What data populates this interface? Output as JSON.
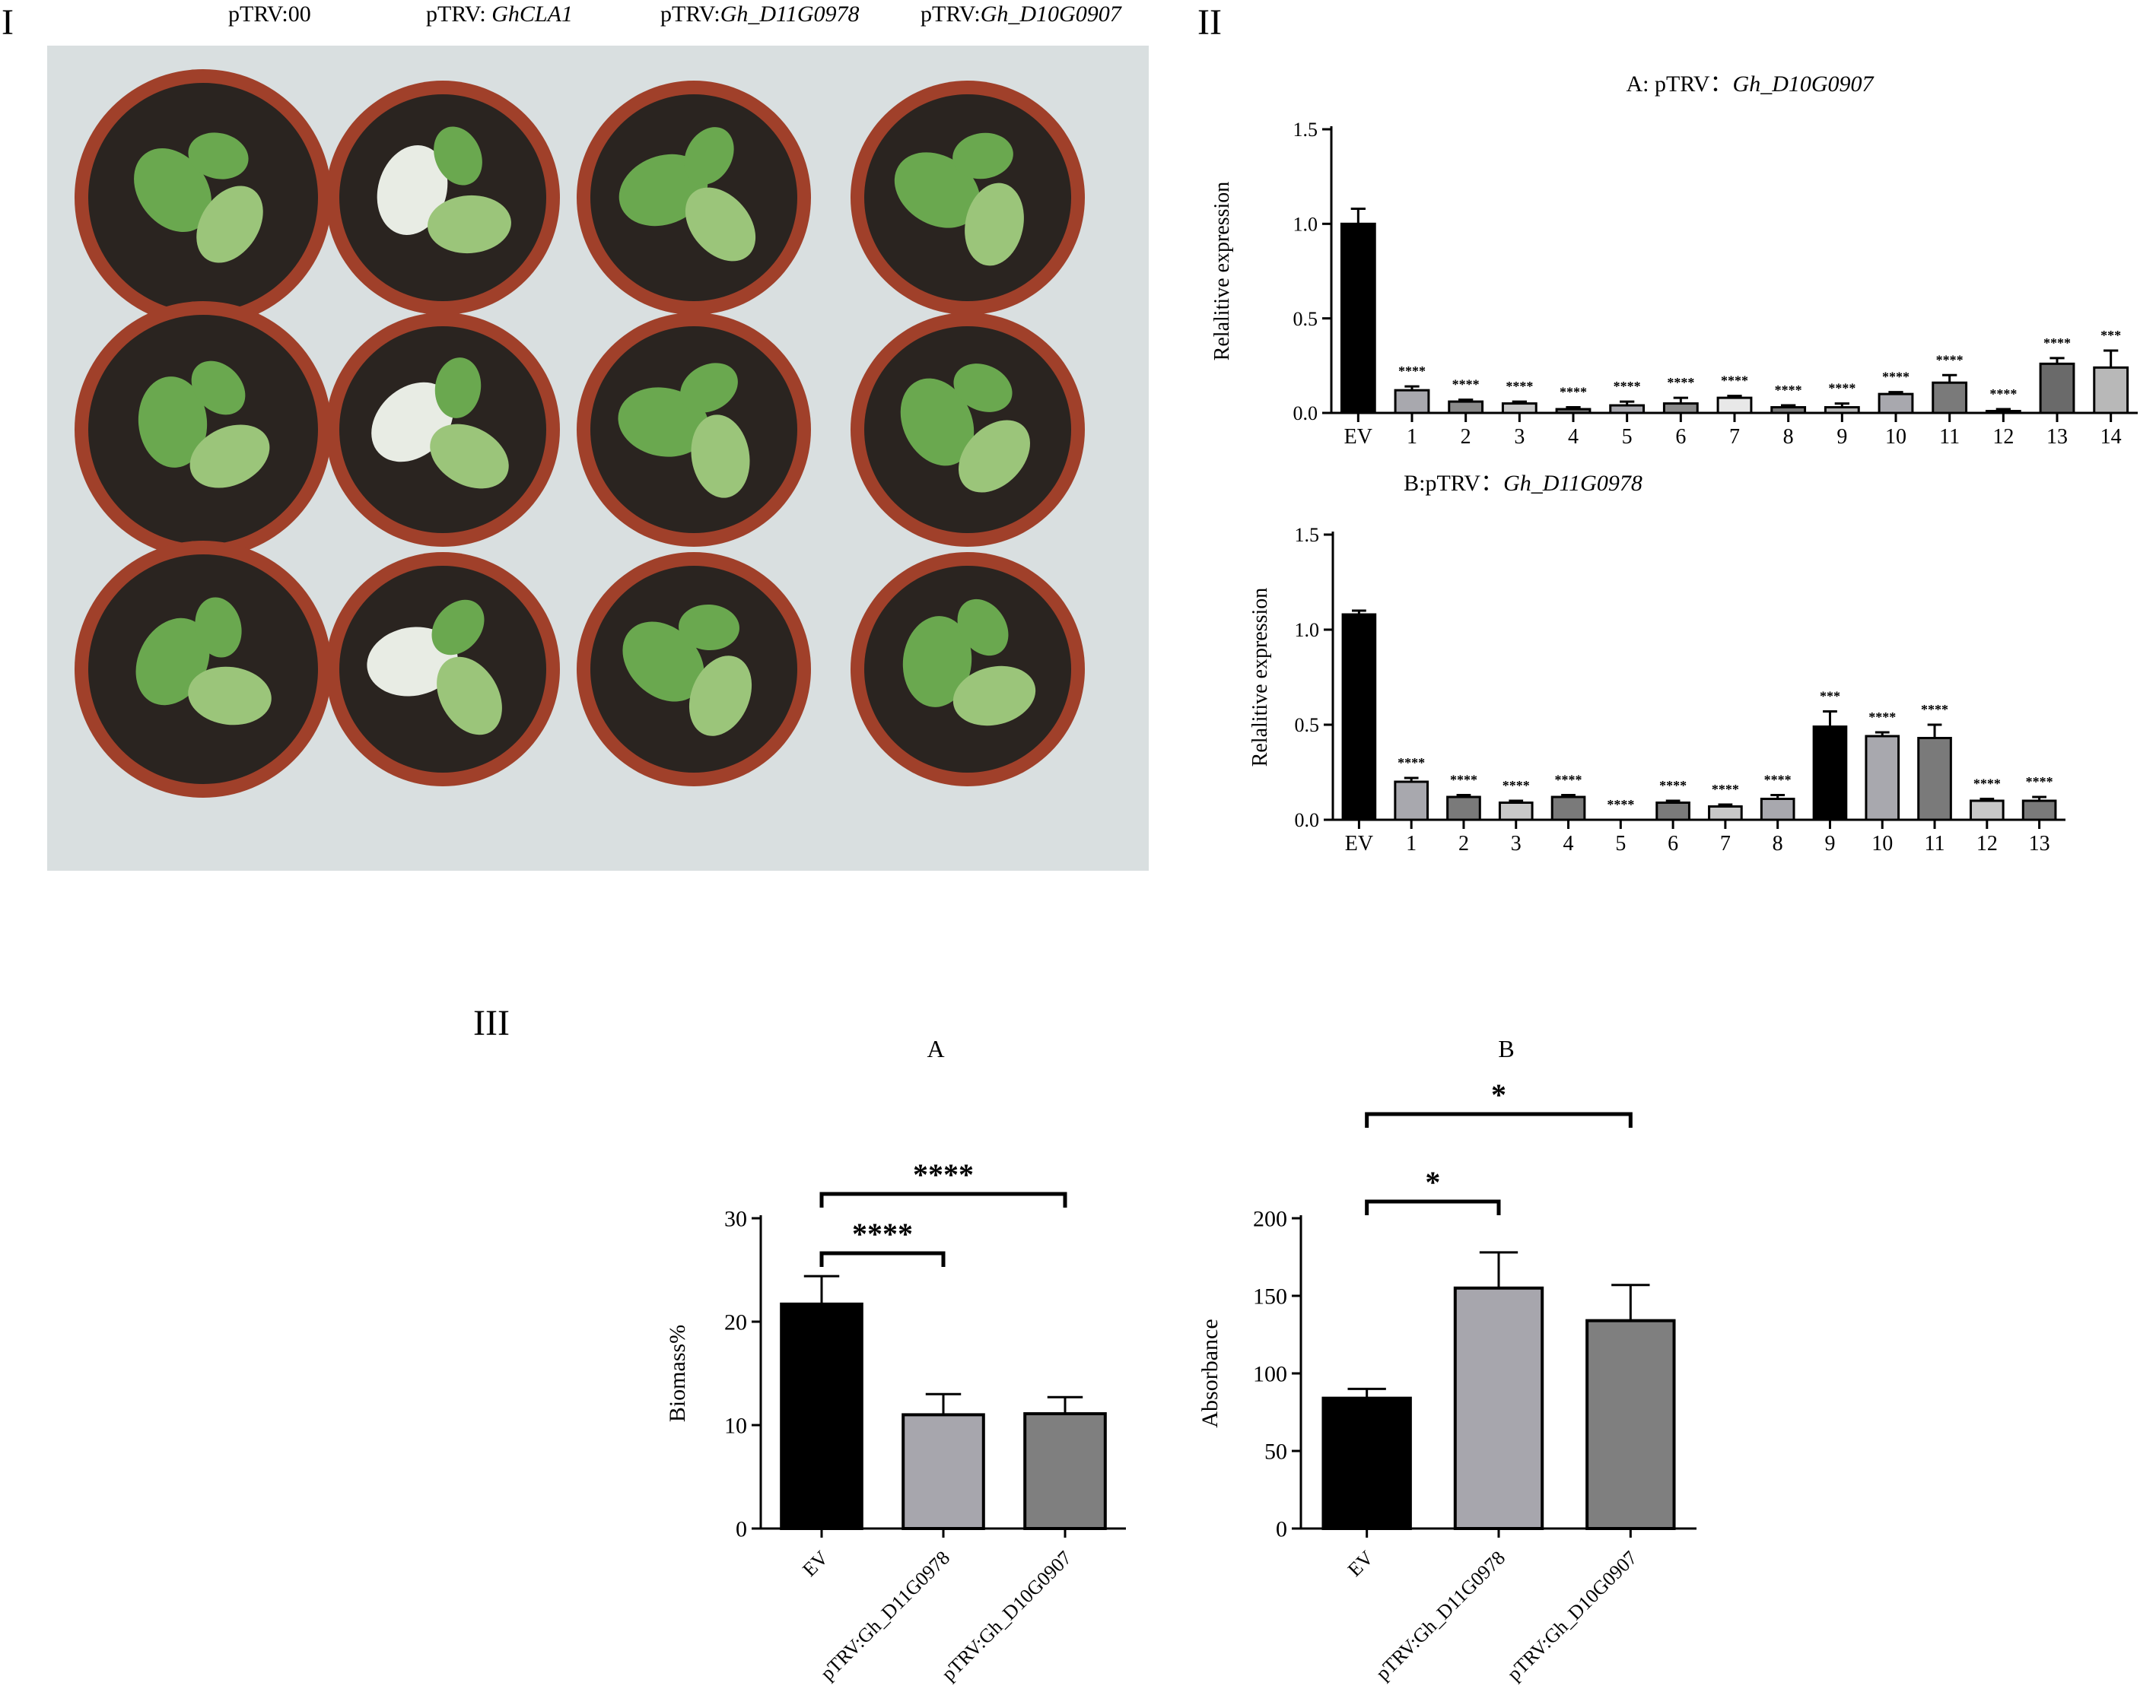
{
  "panel_labels": {
    "p1": "I",
    "p2": "II",
    "p3": "III"
  },
  "photo": {
    "columns": [
      {
        "prefix": "pTRV:00",
        "gene": ""
      },
      {
        "prefix": "pTRV: ",
        "gene": "GhCLA1"
      },
      {
        "prefix": "pTRV:",
        "gene": "Gh_D11G0978"
      },
      {
        "prefix": "pTRV:",
        "gene": "Gh_D10G0907"
      }
    ],
    "colors": {
      "background": "#d9dfe0",
      "pot": "#a0402a",
      "pot_rim": "#b54a31",
      "soil": "#2a2420",
      "leaf": "#6aa84f",
      "leaf_light": "#9bc57a",
      "leaf_albino": "#e8ece4"
    }
  },
  "chart_data": [
    {
      "id": "IIA",
      "type": "bar",
      "title_prefix": "A: pTRV：",
      "title_gene": "Gh_D10G0907",
      "ylabel": "Relalitive expression",
      "ylim": [
        0,
        1.5
      ],
      "yticks": [
        "0.0",
        "0.5",
        "1.0",
        "1.5"
      ],
      "categories": [
        "EV",
        "1",
        "2",
        "3",
        "4",
        "5",
        "6",
        "7",
        "8",
        "9",
        "10",
        "11",
        "12",
        "13",
        "14"
      ],
      "values": [
        1.0,
        0.12,
        0.06,
        0.05,
        0.02,
        0.04,
        0.05,
        0.08,
        0.03,
        0.03,
        0.1,
        0.16,
        0.01,
        0.26,
        0.24
      ],
      "errors": [
        0.08,
        0.02,
        0.01,
        0.01,
        0.01,
        0.02,
        0.03,
        0.01,
        0.01,
        0.02,
        0.01,
        0.04,
        0.01,
        0.03,
        0.09
      ],
      "bar_colors": [
        "#000000",
        "#a8a8ae",
        "#8a8a8a",
        "#c8c8c8",
        "#7a7a7a",
        "#a8a8ae",
        "#8a8a8a",
        "#e8e8e8",
        "#7a7a7a",
        "#b8b8b8",
        "#a8a8ae",
        "#7a7a7a",
        "#c8c8c8",
        "#6a6a6a",
        "#b8b8b8"
      ],
      "significance": [
        "",
        "****",
        "****",
        "****",
        "****",
        "****",
        "****",
        "****",
        "****",
        "****",
        "****",
        "****",
        "****",
        "****",
        "***"
      ]
    },
    {
      "id": "IIB",
      "type": "bar",
      "title_prefix": "B:pTRV：",
      "title_gene": "Gh_D11G0978",
      "ylabel": "Relalitive expression",
      "ylim": [
        0,
        1.5
      ],
      "yticks": [
        "0.0",
        "0.5",
        "1.0",
        "1.5"
      ],
      "categories": [
        "EV",
        "1",
        "2",
        "3",
        "4",
        "5",
        "6",
        "7",
        "8",
        "9",
        "10",
        "11",
        "12",
        "13"
      ],
      "values": [
        1.08,
        0.2,
        0.12,
        0.09,
        0.12,
        0.0,
        0.09,
        0.07,
        0.11,
        0.49,
        0.44,
        0.43,
        0.1,
        0.1
      ],
      "errors": [
        0.02,
        0.02,
        0.01,
        0.01,
        0.01,
        0.0,
        0.01,
        0.01,
        0.02,
        0.08,
        0.02,
        0.07,
        0.01,
        0.02
      ],
      "bar_colors": [
        "#000000",
        "#a8a8ae",
        "#7a7a7a",
        "#c8c8c8",
        "#7a7a7a",
        "#ffffff",
        "#7a7a7a",
        "#c8c8c8",
        "#a8a8ae",
        "#000000",
        "#a8a8ae",
        "#7a7a7a",
        "#c8c8c8",
        "#7a7a7a"
      ],
      "significance": [
        "",
        "****",
        "****",
        "****",
        "****",
        "****",
        "****",
        "****",
        "****",
        "***",
        "****",
        "****",
        "****",
        "****"
      ]
    },
    {
      "id": "IIIA",
      "type": "bar",
      "title": "A",
      "ylabel": "Biomass%",
      "ylim": [
        0,
        30
      ],
      "yticks": [
        "0",
        "10",
        "20",
        "30"
      ],
      "categories": [
        "EV",
        "pTRV:Gh_D11G0978",
        "pTRV:Gh_D10G0907"
      ],
      "values": [
        21.7,
        11.0,
        11.1
      ],
      "errors": [
        2.7,
        2.0,
        1.6
      ],
      "bar_colors": [
        "#000000",
        "#a7a6ad",
        "#7f7f7f"
      ],
      "brackets": [
        {
          "from": 0,
          "to": 1,
          "label": "****"
        },
        {
          "from": 0,
          "to": 2,
          "label": "****"
        }
      ]
    },
    {
      "id": "IIIB",
      "type": "bar",
      "title": "B",
      "ylabel": "Absorbance",
      "ylim": [
        0,
        200
      ],
      "yticks": [
        "0",
        "50",
        "100",
        "150",
        "200"
      ],
      "categories": [
        "EV",
        "pTRV:Gh_D11G0978",
        "pTRV:Gh_D10G0907"
      ],
      "values": [
        84,
        155,
        134
      ],
      "errors": [
        6,
        23,
        23
      ],
      "bar_colors": [
        "#000000",
        "#a7a6ad",
        "#7f7f7f"
      ],
      "brackets": [
        {
          "from": 0,
          "to": 1,
          "label": "*"
        },
        {
          "from": 0,
          "to": 2,
          "label": "*"
        }
      ]
    }
  ]
}
